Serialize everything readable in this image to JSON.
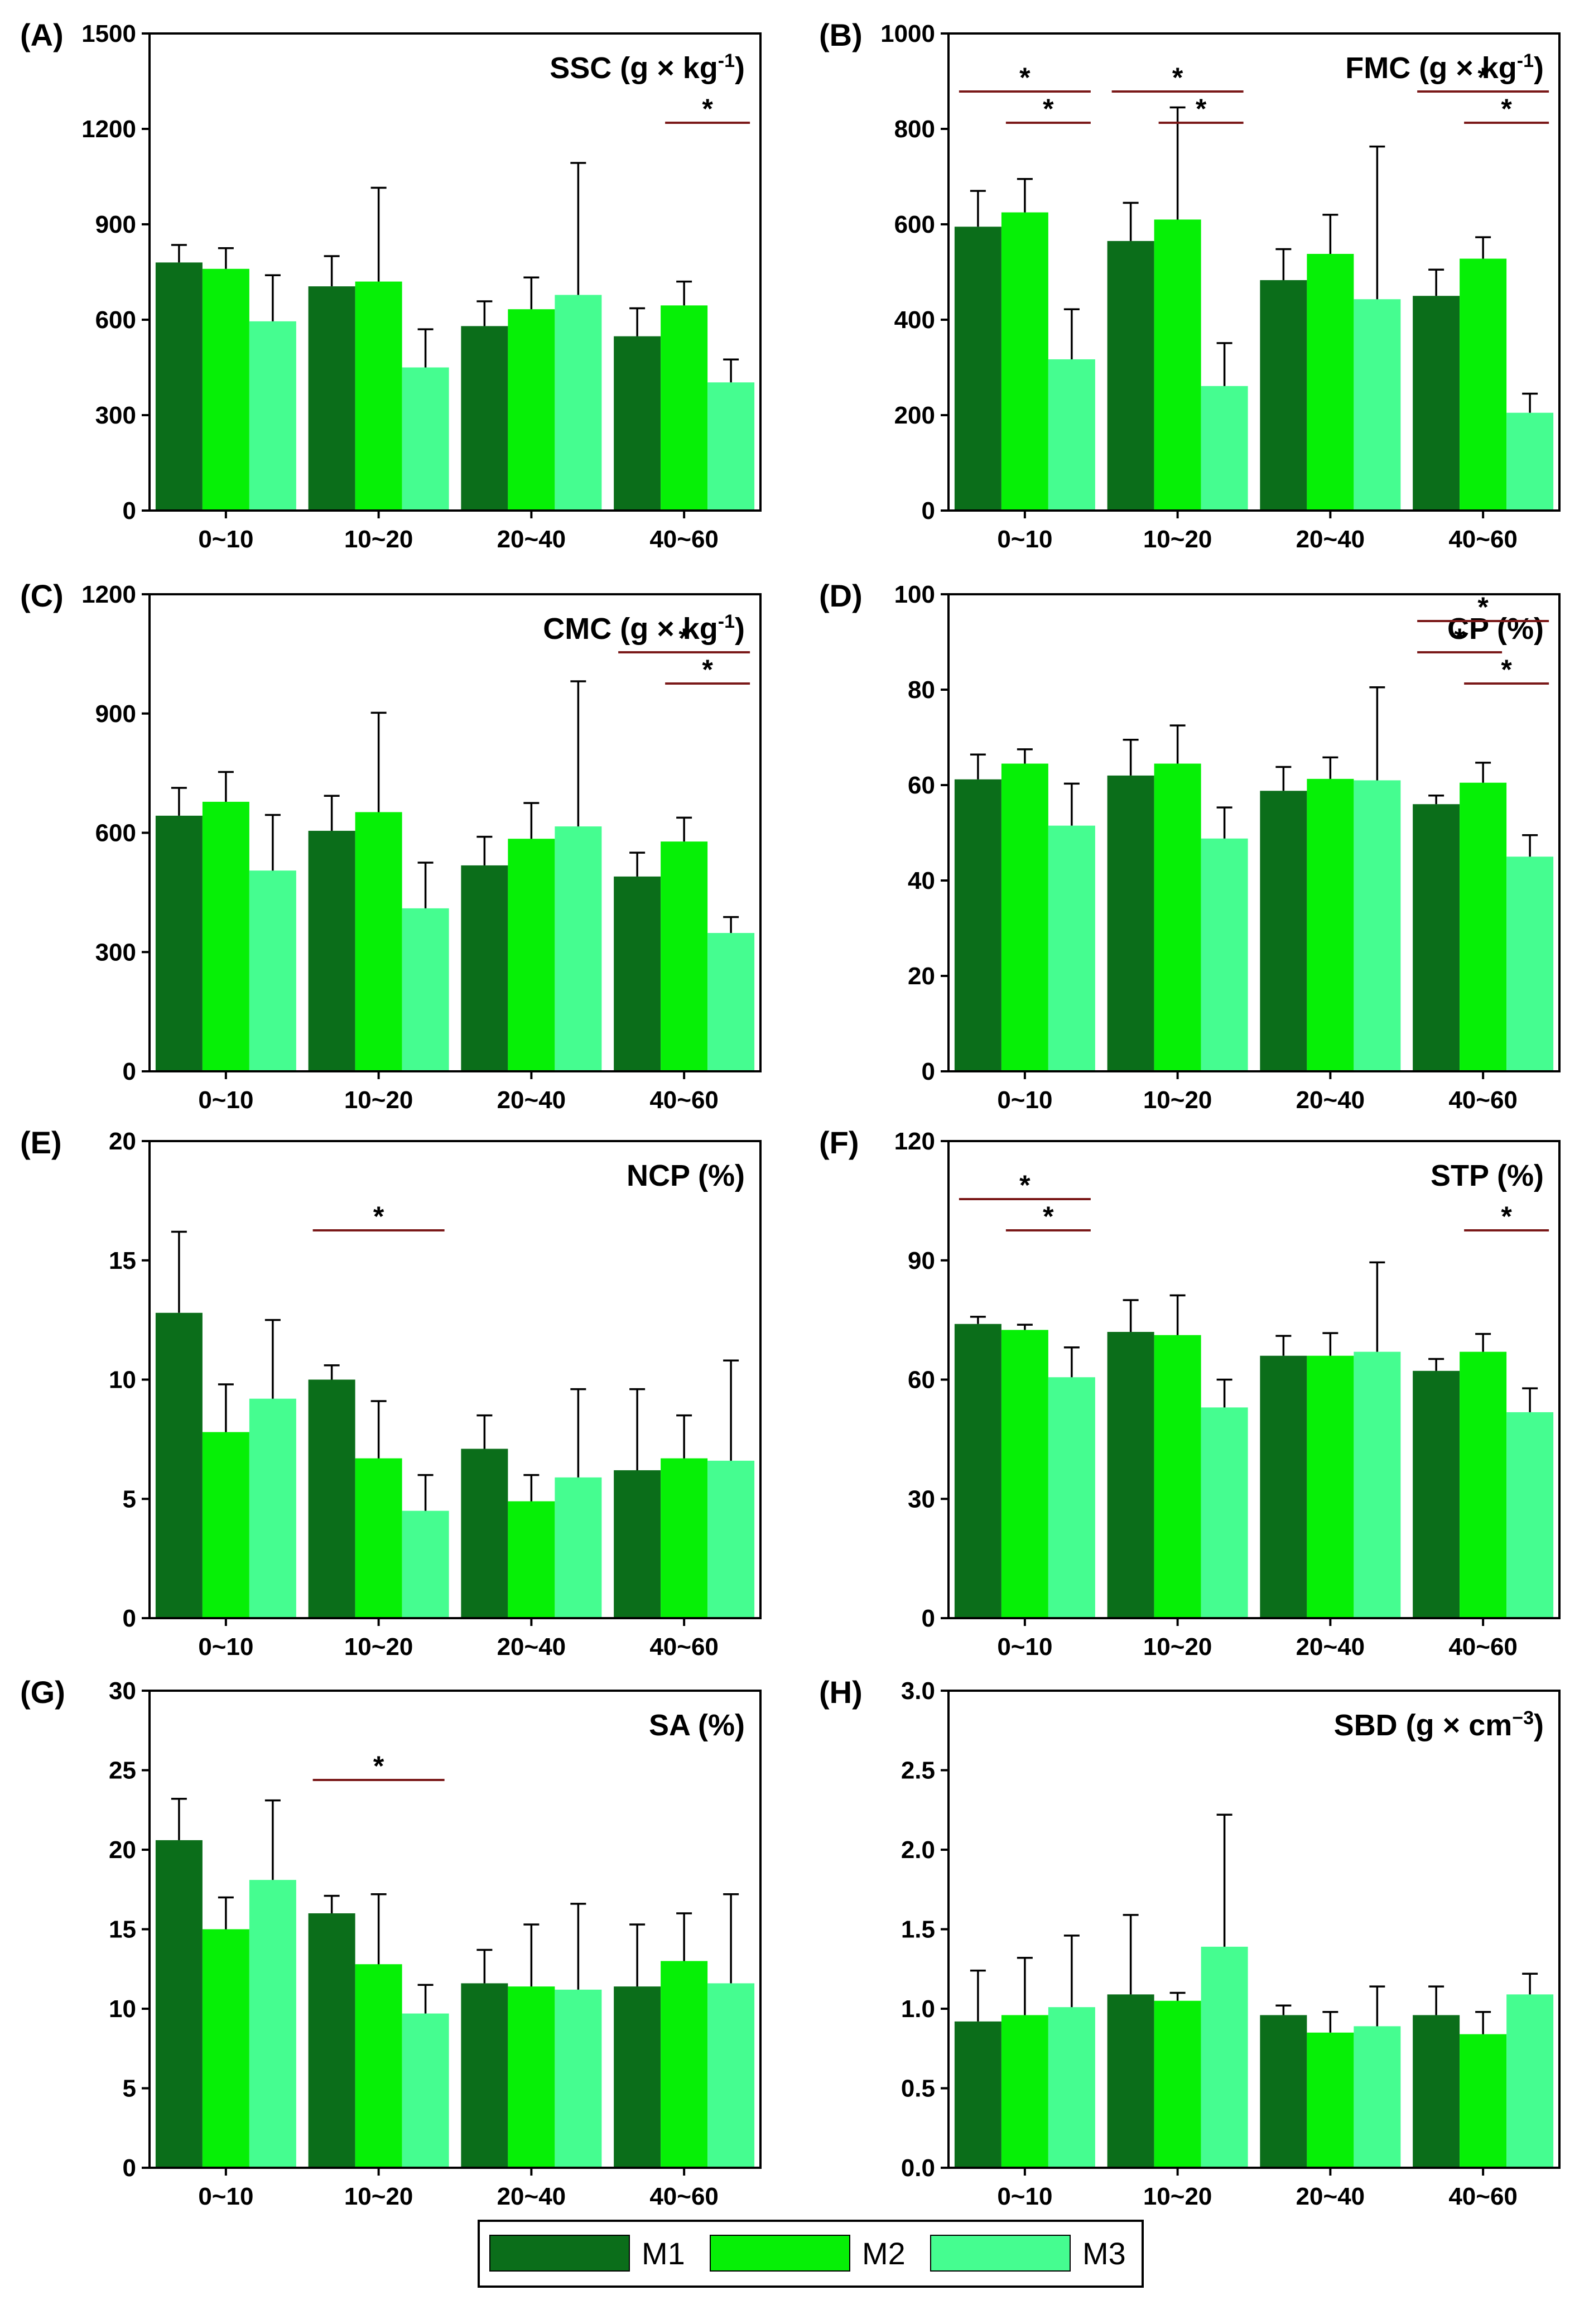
{
  "colors": {
    "M1": "#0b6e1a",
    "M2": "#06f006",
    "M3": "#45fd90",
    "border": "#000000",
    "sig_line": "#7a1818"
  },
  "legend": {
    "items": [
      "M1",
      "M2",
      "M3"
    ]
  },
  "chart_data": [
    {
      "id": "A",
      "panel_label": "(A)",
      "title": "SSC (g × kg",
      "title_sup": "-1",
      "title_close": ")",
      "type": "bar",
      "categories": [
        "0~10",
        "10~20",
        "20~40",
        "40~60"
      ],
      "ylim": [
        0,
        1500
      ],
      "yticks": [
        "0",
        "300",
        "600",
        "900",
        "1200",
        "1500"
      ],
      "series": [
        {
          "name": "M1",
          "values": [
            780,
            705,
            580,
            548
          ],
          "errors": [
            55,
            95,
            78,
            88
          ]
        },
        {
          "name": "M2",
          "values": [
            760,
            720,
            633,
            645
          ],
          "errors": [
            65,
            295,
            100,
            75
          ]
        },
        {
          "name": "M3",
          "values": [
            595,
            450,
            678,
            403
          ],
          "errors": [
            145,
            120,
            415,
            72
          ]
        }
      ],
      "significance": [
        {
          "cat": 3,
          "from": 1,
          "to": 2,
          "level": 0,
          "label": "*"
        }
      ]
    },
    {
      "id": "B",
      "panel_label": "(B)",
      "title": "FMC (g × kg",
      "title_sup": "-1",
      "title_close": ")",
      "type": "bar",
      "categories": [
        "0~10",
        "10~20",
        "20~40",
        "40~60"
      ],
      "ylim": [
        0,
        1000
      ],
      "yticks": [
        "0",
        "200",
        "400",
        "600",
        "800",
        "1000"
      ],
      "series": [
        {
          "name": "M1",
          "values": [
            595,
            565,
            483,
            450
          ],
          "errors": [
            75,
            80,
            65,
            55
          ]
        },
        {
          "name": "M2",
          "values": [
            625,
            610,
            538,
            528
          ],
          "errors": [
            70,
            235,
            82,
            45
          ]
        },
        {
          "name": "M3",
          "values": [
            317,
            261,
            443,
            205
          ],
          "errors": [
            105,
            90,
            320,
            40
          ]
        }
      ],
      "significance": [
        {
          "cat": 0,
          "from": 0,
          "to": 2,
          "level": 1,
          "label": "*"
        },
        {
          "cat": 0,
          "from": 1,
          "to": 2,
          "level": 0,
          "label": "*"
        },
        {
          "cat": 1,
          "from": 0,
          "to": 2,
          "level": 1,
          "label": "*"
        },
        {
          "cat": 1,
          "from": 1,
          "to": 2,
          "level": 0,
          "label": "*"
        },
        {
          "cat": 3,
          "from": 0,
          "to": 2,
          "level": 1,
          "label": "*"
        },
        {
          "cat": 3,
          "from": 1,
          "to": 2,
          "level": 0,
          "label": "*"
        }
      ]
    },
    {
      "id": "C",
      "panel_label": "(C)",
      "title": "CMC (g × kg",
      "title_sup": "-1",
      "title_close": ")",
      "type": "bar",
      "categories": [
        "0~10",
        "10~20",
        "20~40",
        "40~60"
      ],
      "ylim": [
        0,
        1200
      ],
      "yticks": [
        "0",
        "300",
        "600",
        "900",
        "1200"
      ],
      "series": [
        {
          "name": "M1",
          "values": [
            643,
            605,
            518,
            490
          ],
          "errors": [
            70,
            88,
            72,
            60
          ]
        },
        {
          "name": "M2",
          "values": [
            678,
            652,
            585,
            578
          ],
          "errors": [
            75,
            250,
            90,
            60
          ]
        },
        {
          "name": "M3",
          "values": [
            505,
            410,
            616,
            348
          ],
          "errors": [
            140,
            115,
            365,
            40
          ]
        }
      ],
      "significance": [
        {
          "cat": 3,
          "from": 0,
          "to": 2,
          "level": 1,
          "label": "*"
        },
        {
          "cat": 3,
          "from": 1,
          "to": 2,
          "level": 0,
          "label": "*"
        }
      ]
    },
    {
      "id": "D",
      "panel_label": "(D)",
      "title": "CP (%)",
      "title_sup": "",
      "title_close": "",
      "type": "bar",
      "categories": [
        "0~10",
        "10~20",
        "20~40",
        "40~60"
      ],
      "ylim": [
        0,
        100
      ],
      "yticks": [
        "0",
        "20",
        "40",
        "60",
        "80",
        "100"
      ],
      "series": [
        {
          "name": "M1",
          "values": [
            61.2,
            62.0,
            58.8,
            56.0
          ],
          "errors": [
            5.2,
            7.5,
            5.0,
            1.8
          ]
        },
        {
          "name": "M2",
          "values": [
            64.5,
            64.5,
            61.3,
            60.5
          ],
          "errors": [
            3.0,
            8.0,
            4.5,
            4.2
          ]
        },
        {
          "name": "M3",
          "values": [
            51.5,
            48.8,
            61.0,
            45.0
          ],
          "errors": [
            8.8,
            6.5,
            19.5,
            4.5
          ]
        }
      ],
      "significance": [
        {
          "cat": 3,
          "from": 0,
          "to": 2,
          "level": 2,
          "label": "*"
        },
        {
          "cat": 3,
          "from": 0,
          "to": 1,
          "level": 1,
          "label": "*"
        },
        {
          "cat": 3,
          "from": 1,
          "to": 2,
          "level": 0,
          "label": "*"
        }
      ]
    },
    {
      "id": "E",
      "panel_label": "(E)",
      "title": "NCP (%)",
      "title_sup": "",
      "title_close": "",
      "type": "bar",
      "categories": [
        "0~10",
        "10~20",
        "20~40",
        "40~60"
      ],
      "ylim": [
        0,
        20
      ],
      "yticks": [
        "0",
        "5",
        "10",
        "15",
        "20"
      ],
      "series": [
        {
          "name": "M1",
          "values": [
            12.8,
            10.0,
            7.1,
            6.2
          ],
          "errors": [
            3.4,
            0.6,
            1.4,
            3.4
          ]
        },
        {
          "name": "M2",
          "values": [
            7.8,
            6.7,
            4.9,
            6.7
          ],
          "errors": [
            2.0,
            2.4,
            1.1,
            1.8
          ]
        },
        {
          "name": "M3",
          "values": [
            9.2,
            4.5,
            5.9,
            6.6
          ],
          "errors": [
            3.3,
            1.5,
            3.7,
            4.2
          ]
        }
      ],
      "significance": [
        {
          "cat": 1,
          "from": 0,
          "to": 2,
          "level": 0,
          "label": "*"
        }
      ]
    },
    {
      "id": "F",
      "panel_label": "(F)",
      "title": "STP (%)",
      "title_sup": "",
      "title_close": "",
      "type": "bar",
      "categories": [
        "0~10",
        "10~20",
        "20~40",
        "40~60"
      ],
      "ylim": [
        0,
        120
      ],
      "yticks": [
        "0",
        "30",
        "60",
        "90",
        "120"
      ],
      "series": [
        {
          "name": "M1",
          "values": [
            74.0,
            72.0,
            66.0,
            62.2
          ],
          "errors": [
            1.8,
            8.0,
            5.0,
            3.0
          ]
        },
        {
          "name": "M2",
          "values": [
            72.5,
            71.2,
            66.0,
            67.0
          ],
          "errors": [
            1.3,
            10.0,
            5.7,
            4.5
          ]
        },
        {
          "name": "M3",
          "values": [
            60.6,
            53.0,
            67.0,
            51.8
          ],
          "errors": [
            7.5,
            7.0,
            22.5,
            6.0
          ]
        }
      ],
      "significance": [
        {
          "cat": 0,
          "from": 0,
          "to": 2,
          "level": 1,
          "label": "*"
        },
        {
          "cat": 0,
          "from": 1,
          "to": 2,
          "level": 0,
          "label": "*"
        },
        {
          "cat": 3,
          "from": 1,
          "to": 2,
          "level": 0,
          "label": "*"
        }
      ]
    },
    {
      "id": "G",
      "panel_label": "(G)",
      "title": "SA (%)",
      "title_sup": "",
      "title_close": "",
      "type": "bar",
      "categories": [
        "0~10",
        "10~20",
        "20~40",
        "40~60"
      ],
      "ylim": [
        0,
        30
      ],
      "yticks": [
        "0",
        "5",
        "10",
        "15",
        "20",
        "25",
        "30"
      ],
      "series": [
        {
          "name": "M1",
          "values": [
            20.6,
            16.0,
            11.6,
            11.4
          ],
          "errors": [
            2.6,
            1.1,
            2.1,
            3.9
          ]
        },
        {
          "name": "M2",
          "values": [
            15.0,
            12.8,
            11.4,
            13.0
          ],
          "errors": [
            2.0,
            4.4,
            3.9,
            3.0
          ]
        },
        {
          "name": "M3",
          "values": [
            18.1,
            9.7,
            11.2,
            11.6
          ],
          "errors": [
            5.0,
            1.8,
            5.4,
            5.6
          ]
        }
      ],
      "significance": [
        {
          "cat": 1,
          "from": 0,
          "to": 2,
          "level": 0,
          "label": "*"
        }
      ]
    },
    {
      "id": "H",
      "panel_label": "(H)",
      "title": "SBD (g × cm",
      "title_sup": "−3",
      "title_close": ")",
      "type": "bar",
      "categories": [
        "0~10",
        "10~20",
        "20~40",
        "40~60"
      ],
      "ylim": [
        0,
        3
      ],
      "yticks": [
        "0.0",
        "0.5",
        "1.0",
        "1.5",
        "2.0",
        "2.5",
        "3.0"
      ],
      "series": [
        {
          "name": "M1",
          "values": [
            0.92,
            1.09,
            0.96,
            0.96
          ],
          "errors": [
            0.32,
            0.5,
            0.06,
            0.18
          ]
        },
        {
          "name": "M2",
          "values": [
            0.96,
            1.05,
            0.85,
            0.84
          ],
          "errors": [
            0.36,
            0.05,
            0.13,
            0.14
          ]
        },
        {
          "name": "M3",
          "values": [
            1.01,
            1.39,
            0.89,
            1.09
          ],
          "errors": [
            0.45,
            0.83,
            0.25,
            0.13
          ]
        }
      ],
      "significance": []
    }
  ]
}
